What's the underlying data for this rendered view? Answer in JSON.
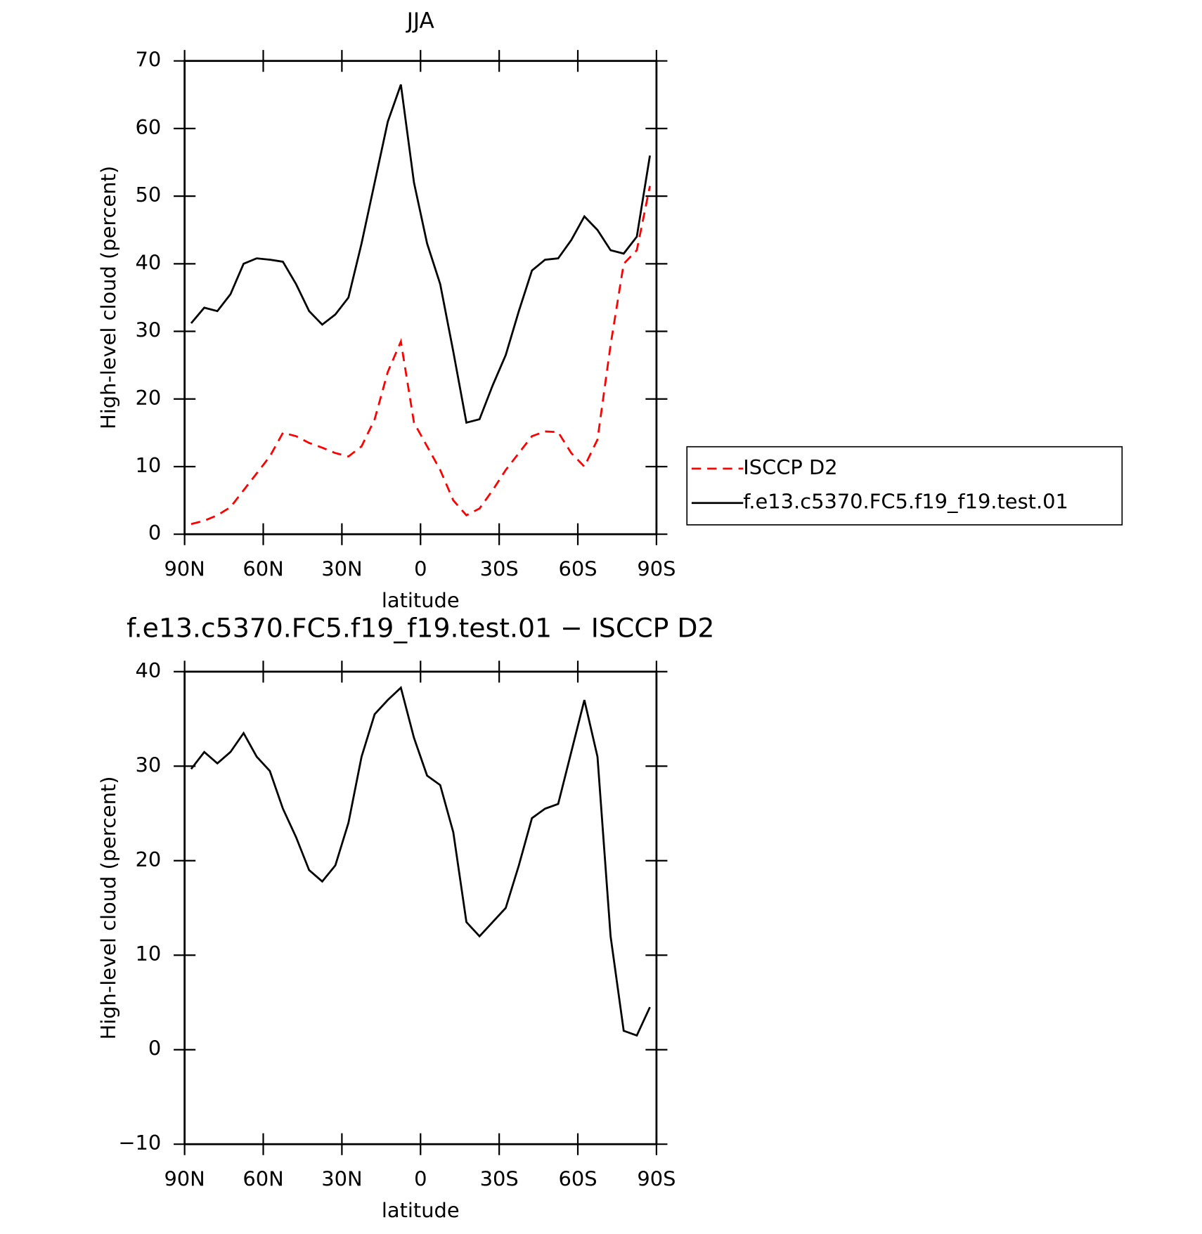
{
  "chart_data": [
    {
      "type": "line",
      "title": "JJA",
      "xlabel": "latitude",
      "ylabel": "High-level cloud (percent)",
      "x": [
        87.5,
        82.5,
        77.5,
        72.5,
        67.5,
        62.5,
        57.5,
        52.5,
        47.5,
        42.5,
        37.5,
        32.5,
        27.5,
        22.5,
        17.5,
        12.5,
        7.5,
        2.5,
        -2.5,
        -7.5,
        -12.5,
        -17.5,
        -22.5,
        -27.5,
        -32.5,
        -37.5,
        -42.5,
        -47.5,
        -52.5,
        -57.5,
        -62.5,
        -67.5,
        -72.5,
        -77.5,
        -82.5,
        -87.5
      ],
      "series": [
        {
          "name": "ISCCP D2",
          "color": "#ff0000",
          "dashed": true,
          "values": [
            1.5,
            2,
            2.8,
            4,
            6.5,
            9,
            11.5,
            15,
            14.5,
            13.5,
            12.8,
            12,
            11.5,
            13,
            17,
            24,
            28.5,
            16.5,
            13,
            9.5,
            5,
            2.8,
            3.8,
            6.5,
            9.5,
            12,
            14.5,
            15.2,
            15.1,
            12,
            10,
            14,
            28,
            40,
            42,
            51.5
          ]
        },
        {
          "name": "f.e13.c5370.FC5.f19_f19.test.01",
          "color": "#000000",
          "dashed": false,
          "values": [
            31.2,
            33.5,
            33,
            35.5,
            40,
            40.8,
            40.6,
            40.3,
            37,
            33,
            31,
            32.5,
            35,
            43,
            52,
            61,
            66.5,
            52,
            43,
            37,
            27,
            16.5,
            17,
            22,
            26.5,
            33,
            39,
            40.6,
            40.8,
            43.5,
            47,
            45,
            42,
            41.5,
            44,
            56
          ]
        }
      ],
      "xlim": [
        90,
        -90
      ],
      "xticks": [
        {
          "value": 90,
          "label": "90N"
        },
        {
          "value": 60,
          "label": "60N"
        },
        {
          "value": 30,
          "label": "30N"
        },
        0,
        {
          "value": -30,
          "label": "30S"
        },
        {
          "value": -60,
          "label": "60S"
        },
        {
          "value": -90,
          "label": "90S"
        }
      ],
      "ylim": [
        0,
        70
      ],
      "yticks": [
        0,
        10,
        20,
        30,
        40,
        50,
        60,
        70
      ],
      "legend": "right"
    },
    {
      "type": "line",
      "title": "f.e13.c5370.FC5.f19_f19.test.01 − ISCCP D2",
      "xlabel": "latitude",
      "ylabel": "High-level cloud (percent)",
      "x": [
        87.5,
        82.5,
        77.5,
        72.5,
        67.5,
        62.5,
        57.5,
        52.5,
        47.5,
        42.5,
        37.5,
        32.5,
        27.5,
        22.5,
        17.5,
        12.5,
        7.5,
        2.5,
        -2.5,
        -7.5,
        -12.5,
        -17.5,
        -22.5,
        -27.5,
        -32.5,
        -37.5,
        -42.5,
        -47.5,
        -52.5,
        -57.5,
        -62.5,
        -67.5,
        -72.5,
        -77.5,
        -82.5,
        -87.5
      ],
      "series": [
        {
          "color": "#000000",
          "dashed": false,
          "values": [
            29.7,
            31.5,
            30.3,
            31.5,
            33.5,
            31,
            29.5,
            25.5,
            22.5,
            19,
            17.8,
            19.5,
            24,
            31,
            35.5,
            37,
            38.3,
            33,
            29,
            28,
            23,
            13.5,
            12,
            13.5,
            15,
            19.5,
            24.5,
            25.5,
            26,
            31.5,
            37,
            31,
            12,
            2,
            1.5,
            4.5
          ]
        }
      ],
      "xlim": [
        90,
        -90
      ],
      "xticks": [
        {
          "value": 90,
          "label": "90N"
        },
        {
          "value": 60,
          "label": "60N"
        },
        {
          "value": 30,
          "label": "30N"
        },
        0,
        {
          "value": -30,
          "label": "30S"
        },
        {
          "value": -60,
          "label": "60S"
        },
        {
          "value": -90,
          "label": "90S"
        }
      ],
      "ylim": [
        -10,
        40
      ],
      "yticks": [
        {
          "value": -10,
          "label": "−10"
        },
        0,
        10,
        20,
        30,
        40
      ]
    }
  ]
}
